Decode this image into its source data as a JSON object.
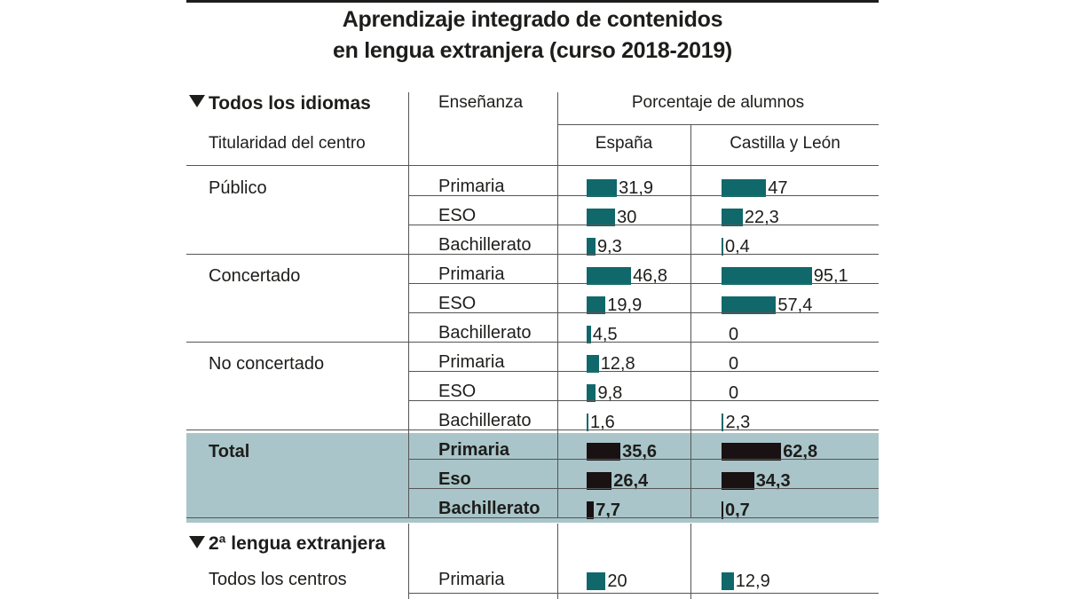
{
  "title_line1": "Aprendizaje integrado de contenidos",
  "title_line2": "en lengua extranjera (curso 2018-2019)",
  "header": {
    "section1": "Todos los idiomas",
    "ownership": "Titularidad del centro",
    "teaching": "Enseñanza",
    "percent": "Porcentaje de alumnos",
    "col_spain": "España",
    "col_cyl": "Castilla y León"
  },
  "section2": "2ª lengua extranjera",
  "colors": {
    "bar": "#10686b",
    "bar_total": "#1a1112",
    "total_band": "#a9c5c9"
  },
  "chart_data": {
    "type": "table",
    "title": "Aprendizaje integrado de contenidos en lengua extranjera (curso 2018-2019)",
    "series_names": [
      "España",
      "Castilla y León"
    ],
    "groups": [
      {
        "label": "Público",
        "bold": false,
        "rows": [
          {
            "level": "Primaria",
            "spain": 31.9,
            "spain_label": "31,9",
            "cyl": 47,
            "cyl_label": "47"
          },
          {
            "level": "ESO",
            "spain": 30,
            "spain_label": "30",
            "cyl": 22.3,
            "cyl_label": "22,3"
          },
          {
            "level": "Bachillerato",
            "spain": 9.3,
            "spain_label": "9,3",
            "cyl": 0.4,
            "cyl_label": "0,4"
          }
        ]
      },
      {
        "label": "Concertado",
        "bold": false,
        "rows": [
          {
            "level": "Primaria",
            "spain": 46.8,
            "spain_label": "46,8",
            "cyl": 95.1,
            "cyl_label": "95,1"
          },
          {
            "level": "ESO",
            "spain": 19.9,
            "spain_label": "19,9",
            "cyl": 57.4,
            "cyl_label": "57,4"
          },
          {
            "level": "Bachillerato",
            "spain": 4.5,
            "spain_label": "4,5",
            "cyl": 0,
            "cyl_label": "0"
          }
        ]
      },
      {
        "label": "No concertado",
        "bold": false,
        "rows": [
          {
            "level": "Primaria",
            "spain": 12.8,
            "spain_label": "12,8",
            "cyl": 0,
            "cyl_label": "0"
          },
          {
            "level": "ESO",
            "spain": 9.8,
            "spain_label": "9,8",
            "cyl": 0,
            "cyl_label": "0"
          },
          {
            "level": "Bachillerato",
            "spain": 1.6,
            "spain_label": "1,6",
            "cyl": 2.3,
            "cyl_label": "2,3"
          }
        ]
      },
      {
        "label": "Total",
        "bold": true,
        "rows": [
          {
            "level": "Primaria",
            "spain": 35.6,
            "spain_label": "35,6",
            "cyl": 62.8,
            "cyl_label": "62,8"
          },
          {
            "level": "Eso",
            "spain": 26.4,
            "spain_label": "26,4",
            "cyl": 34.3,
            "cyl_label": "34,3"
          },
          {
            "level": "Bachillerato",
            "spain": 7.7,
            "spain_label": "7,7",
            "cyl": 0.7,
            "cyl_label": "0,7"
          }
        ]
      }
    ],
    "second_language": {
      "label": "Todos los centros",
      "rows": [
        {
          "level": "Primaria",
          "spain": 20,
          "spain_label": "20",
          "cyl": 12.9,
          "cyl_label": "12,9"
        }
      ]
    },
    "value_range": [
      0,
      100
    ]
  }
}
